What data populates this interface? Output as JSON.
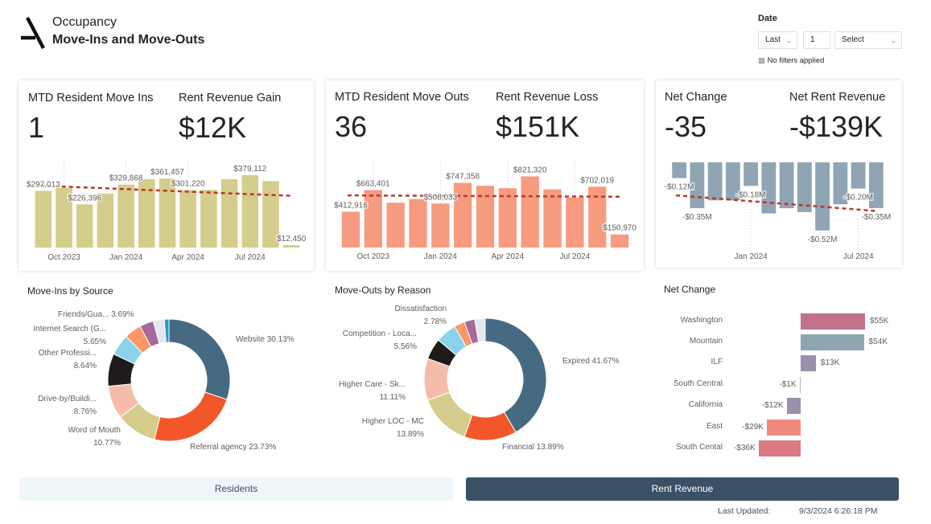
{
  "header": {
    "subtitle": "Occupancy",
    "title": "Move-Ins and Move-Outs"
  },
  "filter": {
    "label": "Date",
    "period_value": "Last",
    "count_value": "1",
    "unit_value": "Select",
    "status": "No filters applied"
  },
  "kpis": {
    "move_ins": {
      "label": "MTD Resident Move Ins",
      "value": "1"
    },
    "revenue_gain": {
      "label": "Rent Revenue Gain",
      "value": "$12K"
    },
    "move_outs": {
      "label": "MTD Resident Move Outs",
      "value": "36"
    },
    "revenue_loss": {
      "label": "Rent Revenue Loss",
      "value": "$151K"
    },
    "net_change": {
      "label": "Net Change",
      "value": "-35"
    },
    "net_revenue": {
      "label": "Net Rent Revenue",
      "value": "-$139K"
    }
  },
  "colors": {
    "gain": "#d4cd8c",
    "loss": "#f69a80",
    "net": "#8fa5b3",
    "trend": "#b8392a",
    "accent": "#3a5064"
  },
  "chart_data": [
    {
      "id": "gain",
      "type": "bar",
      "categories": [
        "Sep 2023",
        "Oct 2023",
        "Nov 2023",
        "Dec 2023",
        "Jan 2024",
        "Feb 2024",
        "Mar 2024",
        "Apr 2024",
        "May 2024",
        "Jun 2024",
        "Jul 2024",
        "Aug 2024",
        "Sep 2024"
      ],
      "values": [
        297013,
        313000,
        226396,
        283000,
        329868,
        358000,
        361457,
        301220,
        302000,
        358000,
        379112,
        348000,
        12450
      ],
      "data_labels": [
        "$297,013",
        null,
        "$226,396",
        null,
        "$329,868",
        null,
        "$361,457",
        "$301,220",
        null,
        null,
        "$379,112",
        null,
        "$12,450"
      ],
      "tick_labels": [
        null,
        "Oct 2023",
        null,
        null,
        "Jan 2024",
        null,
        null,
        "Apr 2024",
        null,
        null,
        "Jul 2024",
        null,
        null
      ],
      "trendline": true
    },
    {
      "id": "loss",
      "type": "bar",
      "categories": [
        "Sep 2023",
        "Oct 2023",
        "Nov 2023",
        "Dec 2023",
        "Jan 2024",
        "Feb 2024",
        "Mar 2024",
        "Apr 2024",
        "May 2024",
        "Jun 2024",
        "Jul 2024",
        "Aug 2024",
        "Sep 2024"
      ],
      "values": [
        412916,
        663401,
        517000,
        558000,
        508033,
        747358,
        713000,
        685000,
        821320,
        672000,
        576000,
        702019,
        150970
      ],
      "data_labels": [
        "$412,916",
        "$663,401",
        null,
        null,
        "$508,033",
        "$747,358",
        null,
        null,
        "$821,320",
        null,
        null,
        "$702,019",
        "$150,970"
      ],
      "tick_labels": [
        null,
        "Oct 2023",
        null,
        null,
        "Jan 2024",
        null,
        null,
        "Apr 2024",
        null,
        null,
        "Jul 2024",
        null,
        null
      ],
      "trendline": true
    },
    {
      "id": "net",
      "type": "bar",
      "categories": [
        "Sep 2023",
        "Oct 2023",
        "Nov 2023",
        "Dec 2023",
        "Jan 2024",
        "Feb 2024",
        "Mar 2024",
        "Apr 2024",
        "May 2024",
        "Jun 2024",
        "Jul 2024",
        "Aug 2024"
      ],
      "values": [
        -0.12,
        -0.35,
        -0.29,
        -0.29,
        -0.18,
        -0.39,
        -0.35,
        -0.38,
        -0.52,
        -0.32,
        -0.2,
        -0.35
      ],
      "unit": "$M",
      "data_labels": [
        "-$0.12M",
        "-$0.35M",
        null,
        null,
        "-$0.18M",
        null,
        null,
        null,
        "-$0.52M",
        null,
        "-$0.20M",
        "-$0.35M"
      ],
      "tick_labels": [
        null,
        null,
        null,
        null,
        "Jan 2024",
        null,
        null,
        null,
        null,
        null,
        "Jul 2024",
        null
      ],
      "trendline": true
    },
    {
      "id": "source",
      "type": "pie",
      "title": "Move-Ins by Source",
      "slices": [
        {
          "label": "Website",
          "value": 30.13,
          "color": "#466a82",
          "text": "Website 30.13%"
        },
        {
          "label": "Referral agency",
          "value": 23.73,
          "color": "#f2572a",
          "text": "Referral agency 23.73%"
        },
        {
          "label": "Word of Mouth",
          "value": 10.77,
          "color": "#d4cd8c",
          "text": "Word of Mouth",
          "pct": "10.77%"
        },
        {
          "label": "Drive-by/Buildi...",
          "value": 8.76,
          "color": "#f6bcaa",
          "text": "Drive-by/Buildi...",
          "pct": "8.76%"
        },
        {
          "label": "Other Professi...",
          "value": 8.64,
          "color": "#1f1b1b",
          "text": "Other Professi...",
          "pct": "8.64%"
        },
        {
          "label": "Internet Search (G...",
          "value": 5.65,
          "color": "#8ad4eb",
          "text": "Internet Search (G...",
          "pct": "5.65%"
        },
        {
          "label": null,
          "value": 4.5,
          "color": "#fe9666"
        },
        {
          "label": "Friends/Gua...",
          "value": 3.69,
          "color": "#a66999",
          "text": "Friends/Gua... 3.69%"
        },
        {
          "label": null,
          "value": 2.9,
          "color": "#e3e8ef"
        },
        {
          "label": null,
          "value": 1.23,
          "color": "#2a9bc1"
        }
      ]
    },
    {
      "id": "reason",
      "type": "pie",
      "title": "Move-Outs by Reason",
      "slices": [
        {
          "label": "Expired",
          "value": 41.67,
          "color": "#466a82",
          "text": "Expired 41.67%"
        },
        {
          "label": "Financial",
          "value": 13.89,
          "color": "#f2572a",
          "text": "Financial 13.89%"
        },
        {
          "label": "Higher LOC - MC",
          "value": 13.89,
          "color": "#d4cd8c",
          "text": "Higher LOC - MC",
          "pct": "13.89%"
        },
        {
          "label": "Higher Care - Sk...",
          "value": 11.11,
          "color": "#f6bcaa",
          "text": "Higher Care - Sk...",
          "pct": "11.11%"
        },
        {
          "label": "Competition - Loca...",
          "value": 5.56,
          "color": "#1f1b1b",
          "text": "Competition - Loca...",
          "pct": "5.56%"
        },
        {
          "label": null,
          "value": 5.56,
          "color": "#8ad4eb"
        },
        {
          "label": "Dissatisfaction",
          "value": 2.78,
          "color": "#fe9666",
          "text": "Dissatisfaction",
          "pct": "2.78%"
        },
        {
          "label": null,
          "value": 2.78,
          "color": "#a66999"
        },
        {
          "label": null,
          "value": 2.78,
          "color": "#e3e8ef"
        }
      ]
    },
    {
      "id": "region",
      "type": "bar",
      "orientation": "horizontal",
      "title": "Net Change",
      "categories": [
        "Washington",
        "Mountain",
        "ILF",
        "South Central",
        "California",
        "East",
        "South Cental"
      ],
      "values": [
        55,
        54,
        13,
        -1,
        -12,
        -29,
        -36
      ],
      "unit": "$K",
      "data_labels": [
        "$55K",
        "$54K",
        "$13K",
        "-$1K",
        "-$12K",
        "-$29K",
        "-$36K"
      ],
      "colors": [
        "#c0728c",
        "#8fa5b2",
        "#9990ab",
        "#a7b9cc",
        "#9990ab",
        "#f08b7c",
        "#d97a84"
      ]
    }
  ],
  "footer": {
    "residents_label": "Residents",
    "rent_revenue_label": "Rent Revenue",
    "last_updated_label": "Last Updated:",
    "last_updated_value": "9/3/2024 6:26:18 PM"
  }
}
